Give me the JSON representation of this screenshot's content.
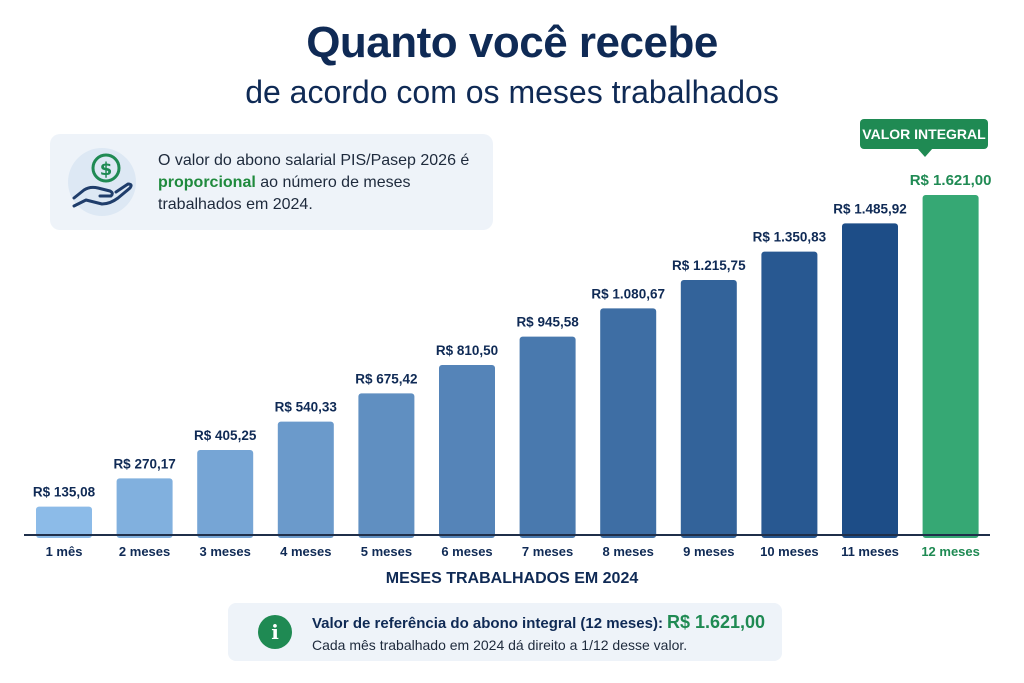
{
  "header": {
    "title": "Quanto você recebe",
    "subtitle": "de acordo com os meses trabalhados"
  },
  "info": {
    "icon": "hand-coin-icon",
    "text_before": "O valor do abono salarial PIS/Pasep 2026 é ",
    "highlight": "proporcional",
    "text_after": " ao número de meses trabalhados em 2024."
  },
  "badge": {
    "label": "VALOR INTEGRAL"
  },
  "chart_data": {
    "type": "bar",
    "categories": [
      "1 mês",
      "2 meses",
      "3 meses",
      "4 meses",
      "5 meses",
      "6 meses",
      "7 meses",
      "8 meses",
      "9 meses",
      "10 meses",
      "11 meses",
      "12 meses"
    ],
    "values": [
      135.08,
      270.17,
      405.25,
      540.33,
      675.42,
      810.5,
      945.58,
      1080.67,
      1215.75,
      1350.83,
      1485.92,
      1621.0
    ],
    "data_labels": [
      "R$ 135,08",
      "R$ 270,17",
      "R$ 405,25",
      "R$ 540,33",
      "R$ 675,42",
      "R$ 810,50",
      "R$ 945,58",
      "R$ 1.080,67",
      "R$ 1.215,75",
      "R$ 1.350,83",
      "R$ 1.485,92",
      "R$ 1.621,00"
    ],
    "xlabel": "MESES TRABALHADOS EM 2024",
    "ylabel": "",
    "ylim": [
      0,
      1621
    ],
    "highlight_index": 11,
    "colors": {
      "gradient_start": "#8cbbe8",
      "gradient_end": "#1d4d87",
      "highlight": "#36a874",
      "label": "#0f2a55",
      "highlight_label": "#1f8a53",
      "axis": "#1f2f4a"
    }
  },
  "note": {
    "icon": "info-icon",
    "line1": "Valor de referência do abono integral (12 meses):",
    "value": "R$ 1.621,00",
    "line2": "Cada mês trabalhado em 2024 dá direito a 1/12 desse valor."
  }
}
